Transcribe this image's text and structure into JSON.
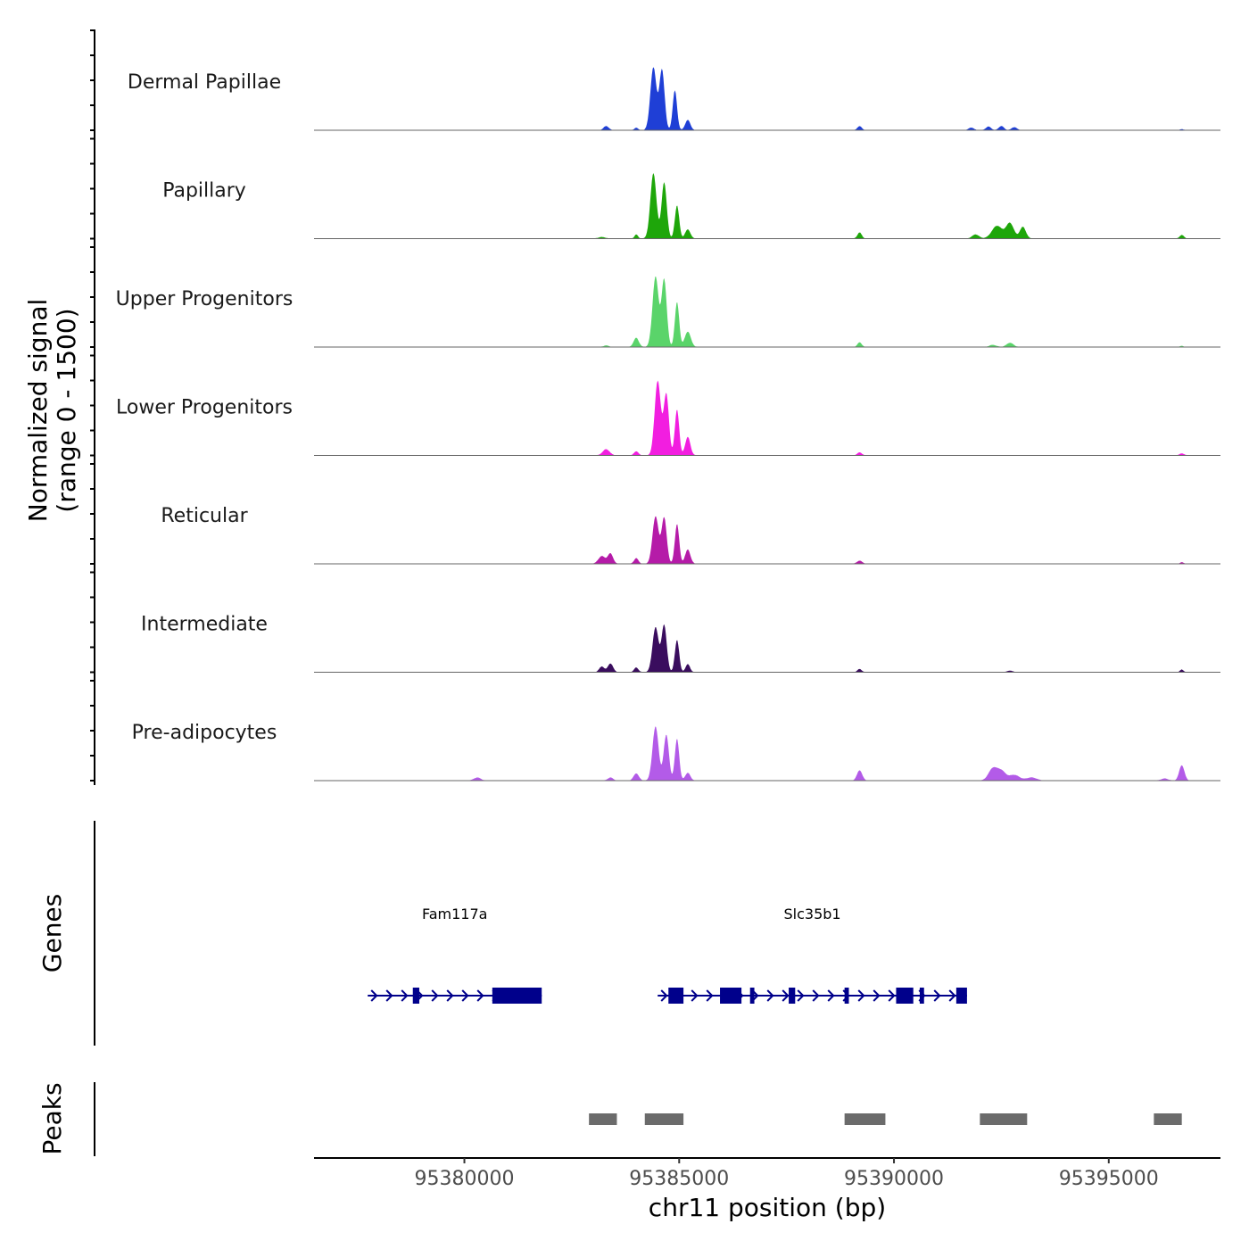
{
  "chart_data": {
    "type": "area",
    "title": "",
    "xlabel": "chr11 position (bp)",
    "ylabel_line1": "Normalized signal",
    "ylabel_line2": "(range 0 - 1500)",
    "ylim": [
      0,
      1500
    ],
    "xlim": [
      95376500,
      95397600
    ],
    "x_ticks": [
      95380000,
      95385000,
      95390000,
      95395000
    ],
    "x_tick_labels": [
      "95380000",
      "95385000",
      "95390000",
      "95395000"
    ],
    "tracks": [
      {
        "name": "Dermal Papillae",
        "color": "#1f3fd6",
        "peaks": [
          [
            95383300,
            80,
            60
          ],
          [
            95384000,
            50,
            40
          ],
          [
            95384400,
            1230,
            70
          ],
          [
            95384600,
            1180,
            60
          ],
          [
            95384900,
            780,
            50
          ],
          [
            95385200,
            200,
            60
          ],
          [
            95389200,
            80,
            50
          ],
          [
            95391800,
            50,
            60
          ],
          [
            95392200,
            70,
            60
          ],
          [
            95392500,
            80,
            60
          ],
          [
            95392800,
            60,
            60
          ],
          [
            95396700,
            20,
            40
          ]
        ]
      },
      {
        "name": "Papillary",
        "color": "#1ea60a",
        "peaks": [
          [
            95383200,
            30,
            80
          ],
          [
            95384000,
            80,
            40
          ],
          [
            95384400,
            1280,
            70
          ],
          [
            95384650,
            1100,
            60
          ],
          [
            95384950,
            650,
            50
          ],
          [
            95385200,
            180,
            60
          ],
          [
            95389200,
            120,
            50
          ],
          [
            95391900,
            80,
            80
          ],
          [
            95392400,
            250,
            120
          ],
          [
            95392700,
            300,
            90
          ],
          [
            95393000,
            230,
            70
          ],
          [
            95396700,
            70,
            50
          ]
        ]
      },
      {
        "name": "Upper Progenitors",
        "color": "#5ad46a",
        "peaks": [
          [
            95383300,
            30,
            60
          ],
          [
            95384000,
            180,
            60
          ],
          [
            95384450,
            1380,
            70
          ],
          [
            95384650,
            1320,
            60
          ],
          [
            95384950,
            880,
            50
          ],
          [
            95385200,
            300,
            70
          ],
          [
            95389200,
            90,
            50
          ],
          [
            95392300,
            40,
            80
          ],
          [
            95392700,
            80,
            80
          ],
          [
            95396700,
            20,
            40
          ]
        ]
      },
      {
        "name": "Lower Progenitors",
        "color": "#f21ee0",
        "peaks": [
          [
            95383300,
            120,
            80
          ],
          [
            95384000,
            80,
            50
          ],
          [
            95384500,
            1460,
            70
          ],
          [
            95384700,
            1200,
            60
          ],
          [
            95384950,
            900,
            50
          ],
          [
            95385200,
            360,
            60
          ],
          [
            95389200,
            60,
            50
          ],
          [
            95396700,
            40,
            50
          ]
        ]
      },
      {
        "name": "Reticular",
        "color": "#b51ba8",
        "peaks": [
          [
            95383200,
            150,
            80
          ],
          [
            95383400,
            200,
            60
          ],
          [
            95384000,
            110,
            50
          ],
          [
            95384450,
            930,
            70
          ],
          [
            95384650,
            900,
            60
          ],
          [
            95384950,
            780,
            50
          ],
          [
            95385200,
            280,
            60
          ],
          [
            95389200,
            60,
            60
          ],
          [
            95396700,
            30,
            40
          ]
        ]
      },
      {
        "name": "Intermediate",
        "color": "#3a0d5e",
        "peaks": [
          [
            95383200,
            110,
            60
          ],
          [
            95383400,
            170,
            60
          ],
          [
            95384000,
            90,
            50
          ],
          [
            95384450,
            880,
            70
          ],
          [
            95384650,
            920,
            60
          ],
          [
            95384950,
            630,
            50
          ],
          [
            95385200,
            160,
            50
          ],
          [
            95389200,
            60,
            50
          ],
          [
            95392700,
            30,
            60
          ],
          [
            95396700,
            50,
            40
          ]
        ]
      },
      {
        "name": "Pre-adipocytes",
        "color": "#b35be8",
        "peaks": [
          [
            95380300,
            60,
            80
          ],
          [
            95383400,
            60,
            60
          ],
          [
            95384000,
            140,
            60
          ],
          [
            95384450,
            1060,
            70
          ],
          [
            95384700,
            900,
            60
          ],
          [
            95384950,
            820,
            50
          ],
          [
            95385200,
            150,
            60
          ],
          [
            95389200,
            200,
            60
          ],
          [
            95392300,
            230,
            100
          ],
          [
            95392500,
            180,
            100
          ],
          [
            95392800,
            110,
            120
          ],
          [
            95393200,
            60,
            120
          ],
          [
            95396300,
            40,
            80
          ],
          [
            95396700,
            300,
            60
          ]
        ]
      }
    ],
    "genes_track_label": "Genes",
    "genes": [
      {
        "name": "Fam117a",
        "start": 95377750,
        "end": 95381800,
        "exons": [
          [
            95378800,
            95378950
          ],
          [
            95380650,
            95381800
          ]
        ]
      },
      {
        "name": "Slc35b1",
        "start": 95384500,
        "end": 95391700,
        "exons": [
          [
            95384750,
            95385100
          ],
          [
            95385950,
            95386450
          ],
          [
            95386650,
            95386750
          ],
          [
            95387550,
            95387700
          ],
          [
            95388850,
            95388950
          ],
          [
            95390050,
            95390450
          ],
          [
            95390600,
            95390700
          ],
          [
            95391450,
            95391700
          ]
        ]
      }
    ],
    "gene_color": "#00008b",
    "peaks_track_label": "Peaks",
    "peak_regions": [
      [
        95382900,
        95383550
      ],
      [
        95384200,
        95385100
      ],
      [
        95388850,
        95389800
      ],
      [
        95392000,
        95393100
      ],
      [
        95396050,
        95396700
      ]
    ],
    "peak_color": "#6b6b6b"
  }
}
